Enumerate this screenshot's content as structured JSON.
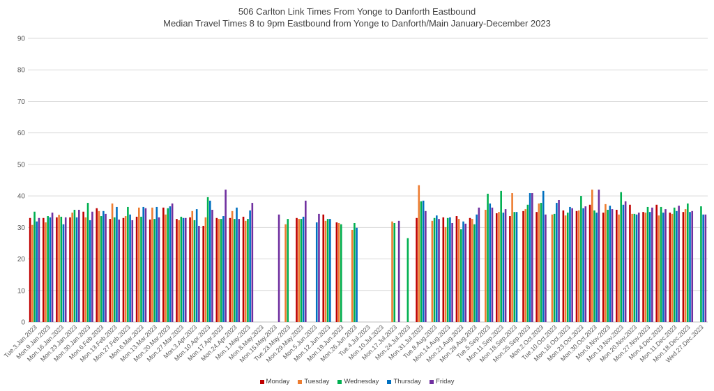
{
  "chart_data": {
    "type": "bar",
    "title": "506 Carlton Link Times From Yonge to Danforth Eastbound",
    "subtitle": "Median Travel Times 8 to 9pm Eastbound from Yonge to Danforth/Main January-December 2023",
    "xlabel": "",
    "ylabel": "",
    "ylim": [
      0,
      90
    ],
    "yticks": [
      0,
      10,
      20,
      30,
      40,
      50,
      60,
      70,
      80,
      90
    ],
    "grid": true,
    "legend_position": "bottom",
    "categories": [
      "Tue.3.Jan.2023",
      "Mon.9.Jan.2023",
      "Mon.16.Jan.2023",
      "Mon.23.Jan.2023",
      "Mon.30.Jan.2023",
      "Mon.6.Feb.2023",
      "Mon.13.Feb.2023",
      "Mon.27.Feb.2023",
      "Mon.6.Mar.2023",
      "Mon.13.Mar.2023",
      "Mon.20.Mar.2023",
      "Mon.27.Mar.2023",
      "Mon.3.Apr.2023",
      "Mon.10.Apr.2023",
      "Mon.17.Apr.2023",
      "Mon.24.Apr.2023",
      "Mon.1.May.2023",
      "Mon.8.May.2023",
      "Mon.15.May.2023",
      "Tue.23.May.2023",
      "Mon.29.May.2023",
      "Mon.5.Jun.2023",
      "Mon.12.Jun.2023",
      "Mon.19.Jun.2023",
      "Mon.26.Jun.2023",
      "Tue.4.Jul.2023",
      "Mon.10.Jul.2023",
      "Mon.17.Jul.2023",
      "Mon.24.Jul.2023",
      "Mon.31.Jul.2023",
      "Tue.8.Aug.2023",
      "Mon.14.Aug.2023",
      "Mon.21.Aug.2023",
      "Mon.28.Aug.2023",
      "Tue.5.Sep.2023",
      "Mon.11.Sep.2023",
      "Mon.18.Sep.2023",
      "Mon.25.Sep.2023",
      "Mon.2.Oct.2023",
      "Tue.10.Oct.2023",
      "Mon.16.Oct.2023",
      "Mon.23.Oct.2023",
      "Mon.30.Oct.2023",
      "Mon.6.Nov.2023",
      "Mon.13.Nov.2023",
      "Mon.20.Nov.2023",
      "Mon.27.Nov.2023",
      "Mon.4.Dec.2023",
      "Mon.11.Dec.2023",
      "Mon.18.Dec.2023",
      "Wed.27.Dec.2023"
    ],
    "series": [
      {
        "name": "Monday",
        "color": "#c00000",
        "values": [
          33.0,
          33.0,
          33.2,
          33.2,
          35.0,
          36.1,
          32.7,
          33.0,
          33.4,
          32.5,
          36.3,
          32.7,
          33.2,
          30.5,
          33.0,
          33.0,
          33.4,
          null,
          null,
          null,
          33.0,
          null,
          34.1,
          31.6,
          null,
          null,
          null,
          null,
          null,
          33.0,
          null,
          33.2,
          33.6,
          33.0,
          null,
          34.5,
          33.6,
          35.2,
          34.9,
          null,
          35.4,
          35.2,
          37.2,
          34.7,
          35.6,
          37.2,
          34.9,
          37.2,
          34.7,
          34.9,
          null
        ]
      },
      {
        "name": "Tuesday",
        "color": "#ed7d31",
        "values": [
          30.8,
          31.6,
          34.0,
          34.7,
          33.2,
          35.2,
          37.6,
          33.6,
          36.3,
          36.3,
          34.1,
          32.3,
          35.2,
          33.2,
          32.7,
          35.2,
          32.1,
          null,
          null,
          31.0,
          32.7,
          null,
          32.1,
          31.4,
          29.2,
          null,
          null,
          31.9,
          null,
          43.4,
          32.1,
          30.1,
          32.7,
          32.7,
          35.6,
          34.9,
          40.9,
          35.8,
          37.6,
          34.1,
          33.8,
          35.4,
          42.0,
          37.4,
          34.1,
          34.3,
          34.7,
          33.8,
          34.3,
          35.8,
          null
        ]
      },
      {
        "name": "Wednesday",
        "color": "#00b050",
        "values": [
          35.0,
          33.6,
          33.4,
          35.6,
          37.8,
          33.6,
          33.2,
          36.5,
          33.4,
          32.7,
          36.1,
          33.4,
          32.3,
          39.6,
          32.7,
          32.7,
          32.7,
          null,
          null,
          32.7,
          32.7,
          null,
          32.7,
          31.0,
          31.4,
          null,
          null,
          31.4,
          26.6,
          38.3,
          33.0,
          33.0,
          29.4,
          31.0,
          40.7,
          41.6,
          34.9,
          37.2,
          37.8,
          34.3,
          34.7,
          40.0,
          35.4,
          35.6,
          41.2,
          34.3,
          36.5,
          36.5,
          36.3,
          37.6,
          36.7
        ]
      },
      {
        "name": "Thursday",
        "color": "#0070c0",
        "values": [
          31.9,
          33.2,
          31.0,
          33.2,
          32.3,
          35.2,
          36.5,
          34.1,
          36.5,
          36.5,
          36.7,
          33.0,
          35.8,
          38.5,
          33.6,
          36.3,
          35.4,
          null,
          null,
          null,
          33.4,
          31.6,
          32.7,
          null,
          29.9,
          null,
          null,
          null,
          null,
          38.5,
          33.8,
          33.2,
          31.9,
          34.1,
          37.6,
          34.7,
          34.9,
          40.9,
          41.6,
          37.8,
          36.5,
          36.1,
          34.7,
          36.9,
          37.2,
          34.1,
          34.9,
          34.7,
          35.2,
          34.9,
          34.1
        ]
      },
      {
        "name": "Friday",
        "color": "#7030a0",
        "values": [
          33.0,
          34.7,
          33.2,
          35.6,
          35.0,
          34.3,
          32.5,
          32.3,
          36.1,
          33.2,
          37.6,
          33.0,
          30.5,
          35.6,
          42.0,
          32.7,
          37.8,
          null,
          34.1,
          null,
          38.5,
          34.3,
          null,
          null,
          null,
          null,
          null,
          32.1,
          null,
          35.2,
          32.7,
          31.4,
          31.2,
          36.3,
          36.3,
          35.8,
          null,
          40.9,
          34.1,
          38.7,
          36.1,
          36.7,
          42.0,
          35.8,
          38.3,
          34.7,
          36.3,
          35.8,
          36.9,
          35.2,
          34.1
        ]
      }
    ]
  }
}
